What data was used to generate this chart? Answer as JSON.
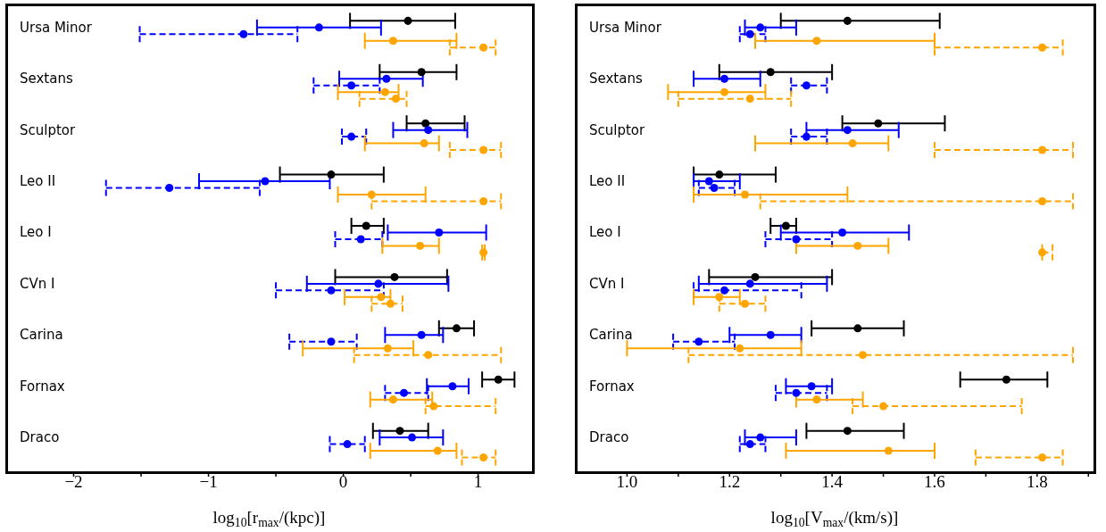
{
  "chart_data": [
    {
      "type": "scatter",
      "orientation": "horizontal",
      "marker": "circle",
      "categories": [
        "Ursa Minor",
        "Sextans",
        "Sculptor",
        "Leo II",
        "Leo I",
        "CVn I",
        "Carina",
        "Fornax",
        "Draco"
      ],
      "xlabel": "log$_{10}$[r$_{max}$/(kpc)]",
      "xlim": [
        -2.5,
        1.4
      ],
      "xticks": [
        {
          "value": -2,
          "label": "−2"
        },
        {
          "value": -1.5,
          "label": null
        },
        {
          "value": -1,
          "label": "−1"
        },
        {
          "value": -0.5,
          "label": null
        },
        0,
        {
          "value": 0.5,
          "label": null
        },
        1
      ],
      "series": [
        {
          "color": "#000000",
          "line_style": "solid",
          "values": [
            0.48,
            0.58,
            0.61,
            -0.09,
            0.17,
            0.38,
            0.84,
            1.15,
            0.42
          ],
          "errors": [
            [
              0.05,
              0.83
            ],
            [
              0.27,
              0.84
            ],
            [
              0.47,
              0.9
            ],
            [
              -0.47,
              0.3
            ],
            [
              0.06,
              0.3
            ],
            [
              -0.06,
              0.77
            ],
            [
              0.71,
              0.97
            ],
            [
              1.03,
              1.27
            ],
            [
              0.22,
              0.63
            ]
          ]
        },
        {
          "color": "#0000ff",
          "line_style": "solid",
          "values": [
            -0.18,
            0.32,
            0.63,
            -0.58,
            0.71,
            0.26,
            0.58,
            0.81,
            0.51
          ],
          "errors": [
            [
              -0.64,
              0.28
            ],
            [
              -0.03,
              0.59
            ],
            [
              0.37,
              0.92
            ],
            [
              -1.07,
              -0.1
            ],
            [
              0.33,
              1.06
            ],
            [
              -0.27,
              0.78
            ],
            [
              0.31,
              0.74
            ],
            [
              0.62,
              0.93
            ],
            [
              0.27,
              0.74
            ]
          ]
        },
        {
          "color": "#0000ff",
          "line_style": "dashed",
          "values": [
            -0.74,
            0.06,
            0.06,
            -1.29,
            0.13,
            -0.09,
            -0.09,
            0.45,
            0.03
          ],
          "errors": [
            [
              -1.51,
              -0.34
            ],
            [
              -0.22,
              0.27
            ],
            [
              -0.01,
              0.17
            ],
            [
              -1.76,
              -0.62
            ],
            [
              -0.06,
              0.29
            ],
            [
              -0.5,
              0.3
            ],
            [
              -0.4,
              0.1
            ],
            [
              0.31,
              0.63
            ],
            [
              -0.1,
              0.16
            ]
          ]
        },
        {
          "color": "#ffa500",
          "line_style": "solid",
          "values": [
            0.37,
            0.31,
            0.6,
            0.21,
            0.57,
            0.28,
            0.33,
            0.37,
            0.7
          ],
          "errors": [
            [
              0.16,
              0.84
            ],
            [
              -0.04,
              0.41
            ],
            [
              0.16,
              0.71
            ],
            [
              -0.04,
              0.61
            ],
            [
              0.29,
              0.71
            ],
            [
              0.01,
              0.35
            ],
            [
              -0.3,
              0.52
            ],
            [
              0.2,
              0.66
            ],
            [
              0.2,
              0.84
            ]
          ]
        },
        {
          "color": "#ffa500",
          "line_style": "dashed",
          "values": [
            1.04,
            0.39,
            1.04,
            1.04,
            1.04,
            0.35,
            0.63,
            0.67,
            1.04
          ],
          "errors": [
            [
              0.79,
              1.13
            ],
            [
              0.12,
              0.47
            ],
            [
              0.79,
              1.17
            ],
            [
              0.21,
              1.17
            ],
            [
              1.03,
              1.05
            ],
            [
              0.21,
              0.44
            ],
            [
              0.08,
              1.17
            ],
            [
              0.61,
              1.13
            ],
            [
              0.88,
              1.13
            ]
          ]
        }
      ]
    },
    {
      "type": "scatter",
      "orientation": "horizontal",
      "marker": "circle",
      "categories": [
        "Ursa Minor",
        "Sextans",
        "Sculptor",
        "Leo II",
        "Leo I",
        "CVn I",
        "Carina",
        "Fornax",
        "Draco"
      ],
      "xlabel": "log$_{10}$[V$_{max}$/(km/s)]",
      "xlim": [
        0.9,
        1.91
      ],
      "xticks": [
        {
          "value": 1,
          "label": "1.0"
        },
        {
          "value": 1.1,
          "label": null
        },
        1.2,
        {
          "value": 1.3,
          "label": null
        },
        1.4,
        {
          "value": 1.5,
          "label": null
        },
        1.6,
        {
          "value": 1.7,
          "label": null
        },
        1.8,
        {
          "value": 1.9,
          "label": null
        }
      ],
      "series": [
        {
          "color": "#000000",
          "line_style": "solid",
          "values": [
            1.43,
            1.28,
            1.49,
            1.18,
            1.31,
            1.25,
            1.45,
            1.74,
            1.43
          ],
          "errors": [
            [
              1.3,
              1.61
            ],
            [
              1.18,
              1.4
            ],
            [
              1.42,
              1.62
            ],
            [
              1.13,
              1.29
            ],
            [
              1.28,
              1.33
            ],
            [
              1.16,
              1.4
            ],
            [
              1.36,
              1.54
            ],
            [
              1.65,
              1.82
            ],
            [
              1.35,
              1.54
            ]
          ]
        },
        {
          "color": "#0000ff",
          "line_style": "solid",
          "values": [
            1.26,
            1.19,
            1.43,
            1.16,
            1.42,
            1.24,
            1.28,
            1.36,
            1.26
          ],
          "errors": [
            [
              1.23,
              1.33
            ],
            [
              1.13,
              1.26
            ],
            [
              1.35,
              1.53
            ],
            [
              1.13,
              1.22
            ],
            [
              1.3,
              1.55
            ],
            [
              1.14,
              1.39
            ],
            [
              1.2,
              1.34
            ],
            [
              1.31,
              1.4
            ],
            [
              1.23,
              1.33
            ]
          ]
        },
        {
          "color": "#0000ff",
          "line_style": "dashed",
          "values": [
            1.24,
            1.35,
            1.35,
            1.17,
            1.33,
            1.19,
            1.14,
            1.33,
            1.24
          ],
          "errors": [
            [
              1.22,
              1.27
            ],
            [
              1.32,
              1.39
            ],
            [
              1.32,
              1.39
            ],
            [
              1.14,
              1.21
            ],
            [
              1.27,
              1.4
            ],
            [
              1.13,
              1.34
            ],
            [
              1.09,
              1.21
            ],
            [
              1.29,
              1.39
            ],
            [
              1.22,
              1.27
            ]
          ]
        },
        {
          "color": "#ffa500",
          "line_style": "solid",
          "values": [
            1.37,
            1.19,
            1.44,
            1.23,
            1.45,
            1.18,
            1.22,
            1.37,
            1.51
          ],
          "errors": [
            [
              1.25,
              1.6
            ],
            [
              1.08,
              1.27
            ],
            [
              1.25,
              1.51
            ],
            [
              1.13,
              1.43
            ],
            [
              1.33,
              1.51
            ],
            [
              1.13,
              1.22
            ],
            [
              1.0,
              1.34
            ],
            [
              1.33,
              1.46
            ],
            [
              1.31,
              1.6
            ]
          ]
        },
        {
          "color": "#ffa500",
          "line_style": "dashed",
          "values": [
            1.81,
            1.24,
            1.81,
            1.81,
            1.81,
            1.23,
            1.46,
            1.5,
            1.81
          ],
          "errors": [
            [
              1.6,
              1.85
            ],
            [
              1.1,
              1.32
            ],
            [
              1.6,
              1.87
            ],
            [
              1.26,
              1.87
            ],
            [
              1.81,
              1.83
            ],
            [
              1.18,
              1.27
            ],
            [
              1.12,
              1.87
            ],
            [
              1.44,
              1.77
            ],
            [
              1.68,
              1.85
            ]
          ]
        }
      ]
    }
  ]
}
